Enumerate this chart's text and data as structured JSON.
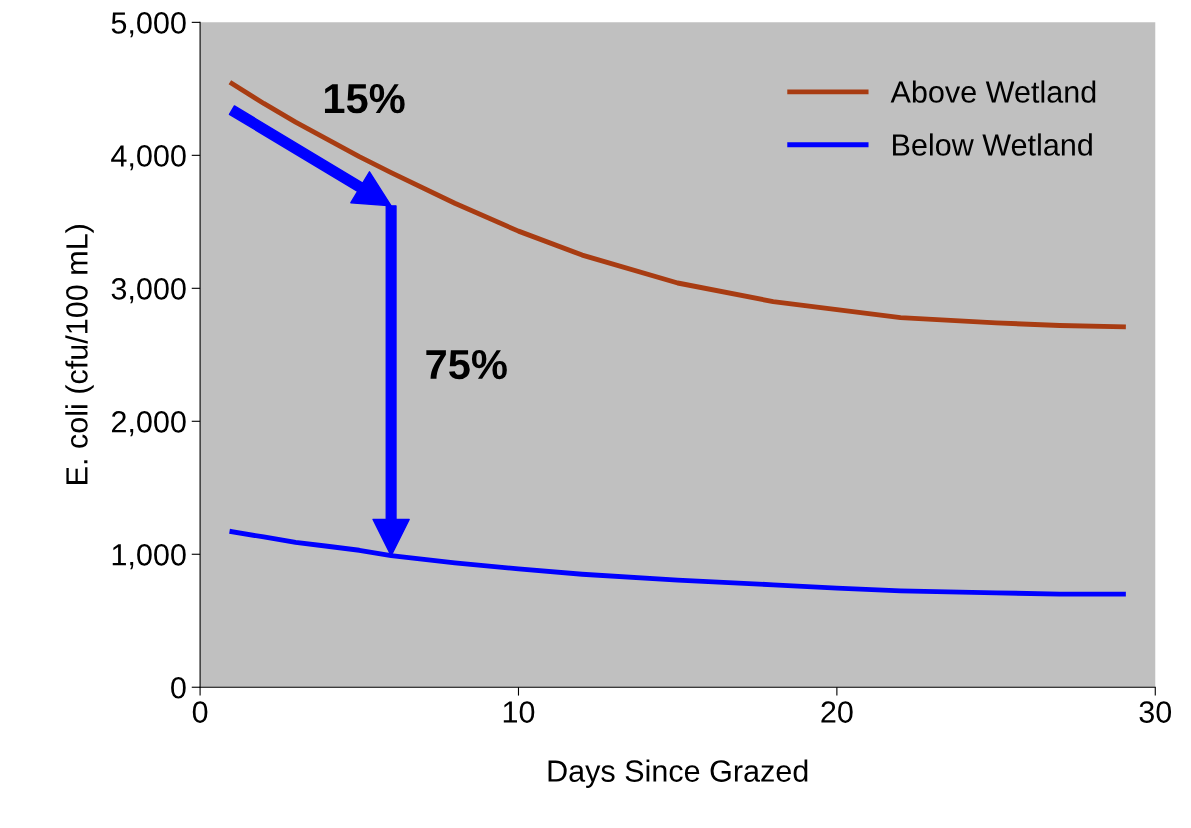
{
  "chart_data": {
    "type": "line",
    "xlabel": "Days Since Grazed",
    "ylabel": "E. coli (cfu/100 mL)",
    "x": [
      1,
      2,
      3,
      4,
      5,
      6,
      8,
      10,
      12,
      15,
      18,
      20,
      22,
      25,
      27,
      29
    ],
    "series": [
      {
        "name": "Above Wetland",
        "color": "#a83c12",
        "values": [
          4540,
          4390,
          4250,
          4120,
          3990,
          3870,
          3640,
          3430,
          3250,
          3040,
          2900,
          2840,
          2780,
          2740,
          2720,
          2710
        ]
      },
      {
        "name": "Below Wetland",
        "color": "#0000ff",
        "values": [
          1170,
          1130,
          1090,
          1060,
          1030,
          990,
          935,
          890,
          850,
          805,
          770,
          745,
          725,
          710,
          700,
          700
        ]
      }
    ],
    "xlim": [
      0,
      30
    ],
    "xticks": [
      0,
      10,
      20,
      30
    ],
    "ylim": [
      0,
      5000
    ],
    "yticks": [
      0,
      {
        "value": 1000,
        "label": "1,000"
      },
      {
        "value": 2000,
        "label": "2,000"
      },
      {
        "value": 3000,
        "label": "3,000"
      },
      {
        "value": 4000,
        "label": "4,000"
      },
      {
        "value": 5000,
        "label": "5,000"
      }
    ],
    "annotations": [
      "15%",
      "75%"
    ],
    "grid": false,
    "legend": "top right",
    "marker": "none",
    "line_style": "solid"
  }
}
